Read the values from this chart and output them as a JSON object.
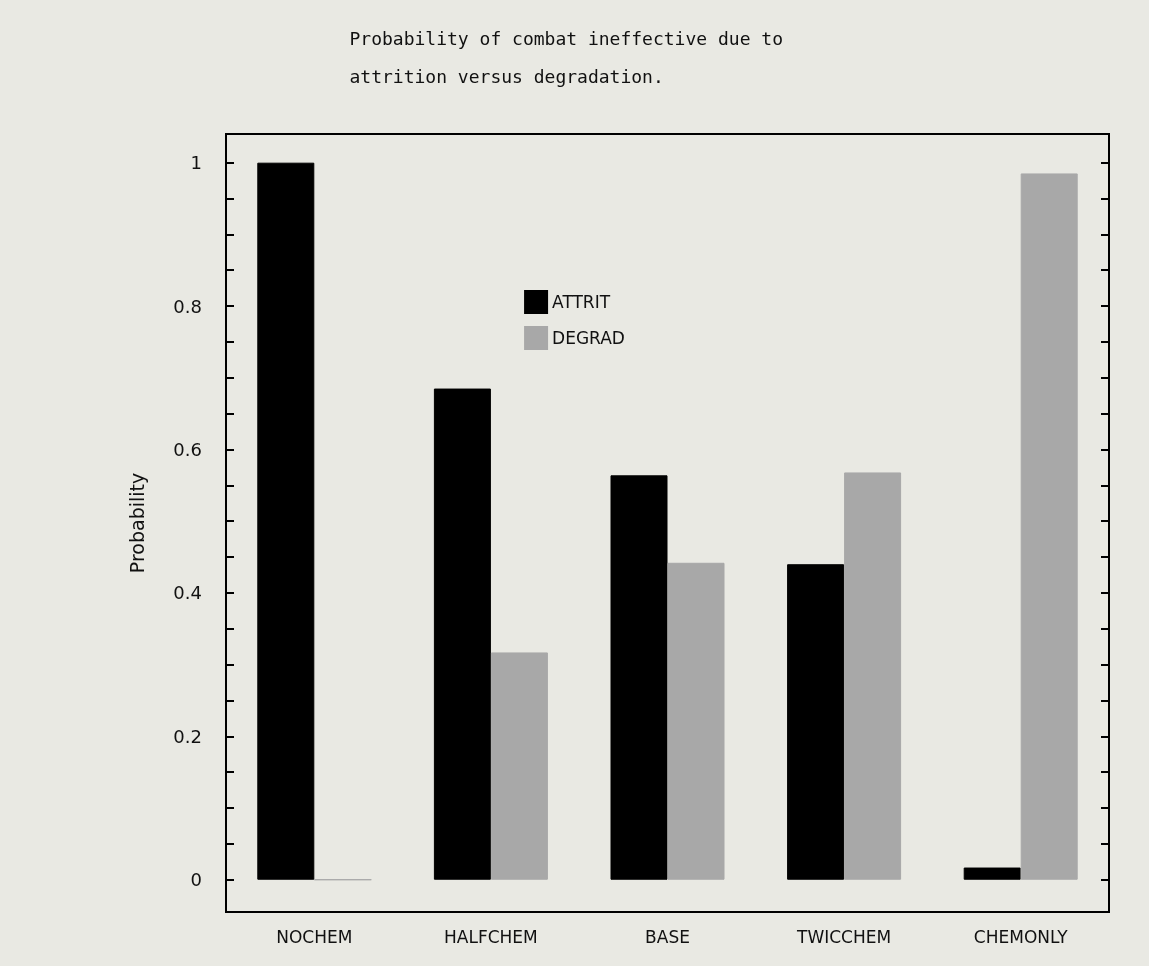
{
  "chart_data": {
    "type": "bar",
    "title": "Probability of combat ineffective due to attrition versus degradation.",
    "ylabel": "Probability",
    "categories": [
      "NOCHEM",
      "HALFCHEM",
      "BASE",
      "TWICCHEM",
      "CHEMONLY"
    ],
    "series": [
      {
        "name": "ATTRIT",
        "color": "#000000",
        "values": [
          1.0,
          0.685,
          0.564,
          0.44,
          0.017
        ]
      },
      {
        "name": "DEGRAD",
        "color": "#a8a8a8",
        "values": [
          0,
          0.317,
          0.442,
          0.568,
          0.985
        ]
      }
    ],
    "ylim": [
      -0.045,
      1.04
    ],
    "yticks": [
      0,
      {
        "value": 0.05,
        "label": null
      },
      {
        "value": 0.1,
        "label": null
      },
      {
        "value": 0.15,
        "label": null
      },
      0.2,
      {
        "value": 0.25,
        "label": null
      },
      {
        "value": 0.3,
        "label": null
      },
      {
        "value": 0.35,
        "label": null
      },
      0.4,
      {
        "value": 0.45,
        "label": null
      },
      {
        "value": 0.5,
        "label": null
      },
      {
        "value": 0.55,
        "label": null
      },
      0.6,
      {
        "value": 0.65,
        "label": null
      },
      {
        "value": 0.7,
        "label": null
      },
      {
        "value": 0.75,
        "label": null
      },
      0.8,
      {
        "value": 0.85,
        "label": null
      },
      {
        "value": 0.9,
        "label": null
      },
      {
        "value": 0.95,
        "label": null
      },
      1
    ],
    "grid": false,
    "legend": "top"
  }
}
